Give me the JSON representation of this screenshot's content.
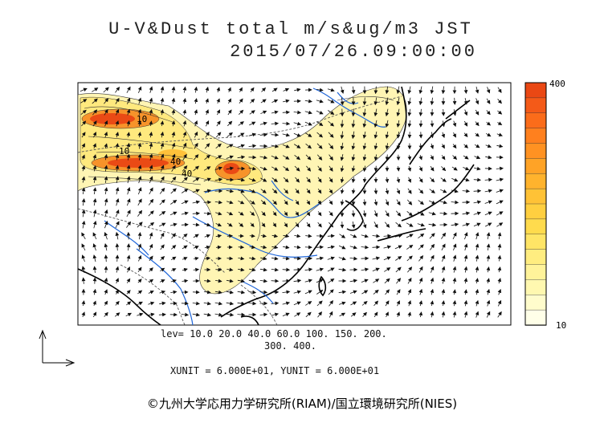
{
  "title_line1": "U-V&Dust total m/s&ug/m3 JST",
  "title_line2": "2015/07/26.09:00:00",
  "colorbar": {
    "max_label": "400",
    "min_label": "10",
    "colors": [
      "#ffffe8",
      "#fffccc",
      "#fff8b0",
      "#fff39a",
      "#ffed80",
      "#ffe566",
      "#ffdb4d",
      "#ffcf40",
      "#ffc236",
      "#ffb32d",
      "#ffa326",
      "#ff9222",
      "#ff801e",
      "#fb6c1a",
      "#f45a18",
      "#ea4814"
    ]
  },
  "levels_line1": "lev= 10.0 20.0 40.0 60.0 100. 150. 200.",
  "levels_line2": "300. 400.",
  "units_line": "XUNIT = 6.000E+01, YUNIT = 6.000E+01",
  "credit": "©九州大学応用力学研究所(RIAM)/国立環境研究所(NIES)",
  "map_labels": [
    "10",
    "10",
    "40",
    "40"
  ],
  "colors": {
    "coast": "#000000",
    "river": "#1f66d9",
    "border": "#444444",
    "dust_low": "#fff6b8",
    "dust_high": "#f05a16"
  }
}
